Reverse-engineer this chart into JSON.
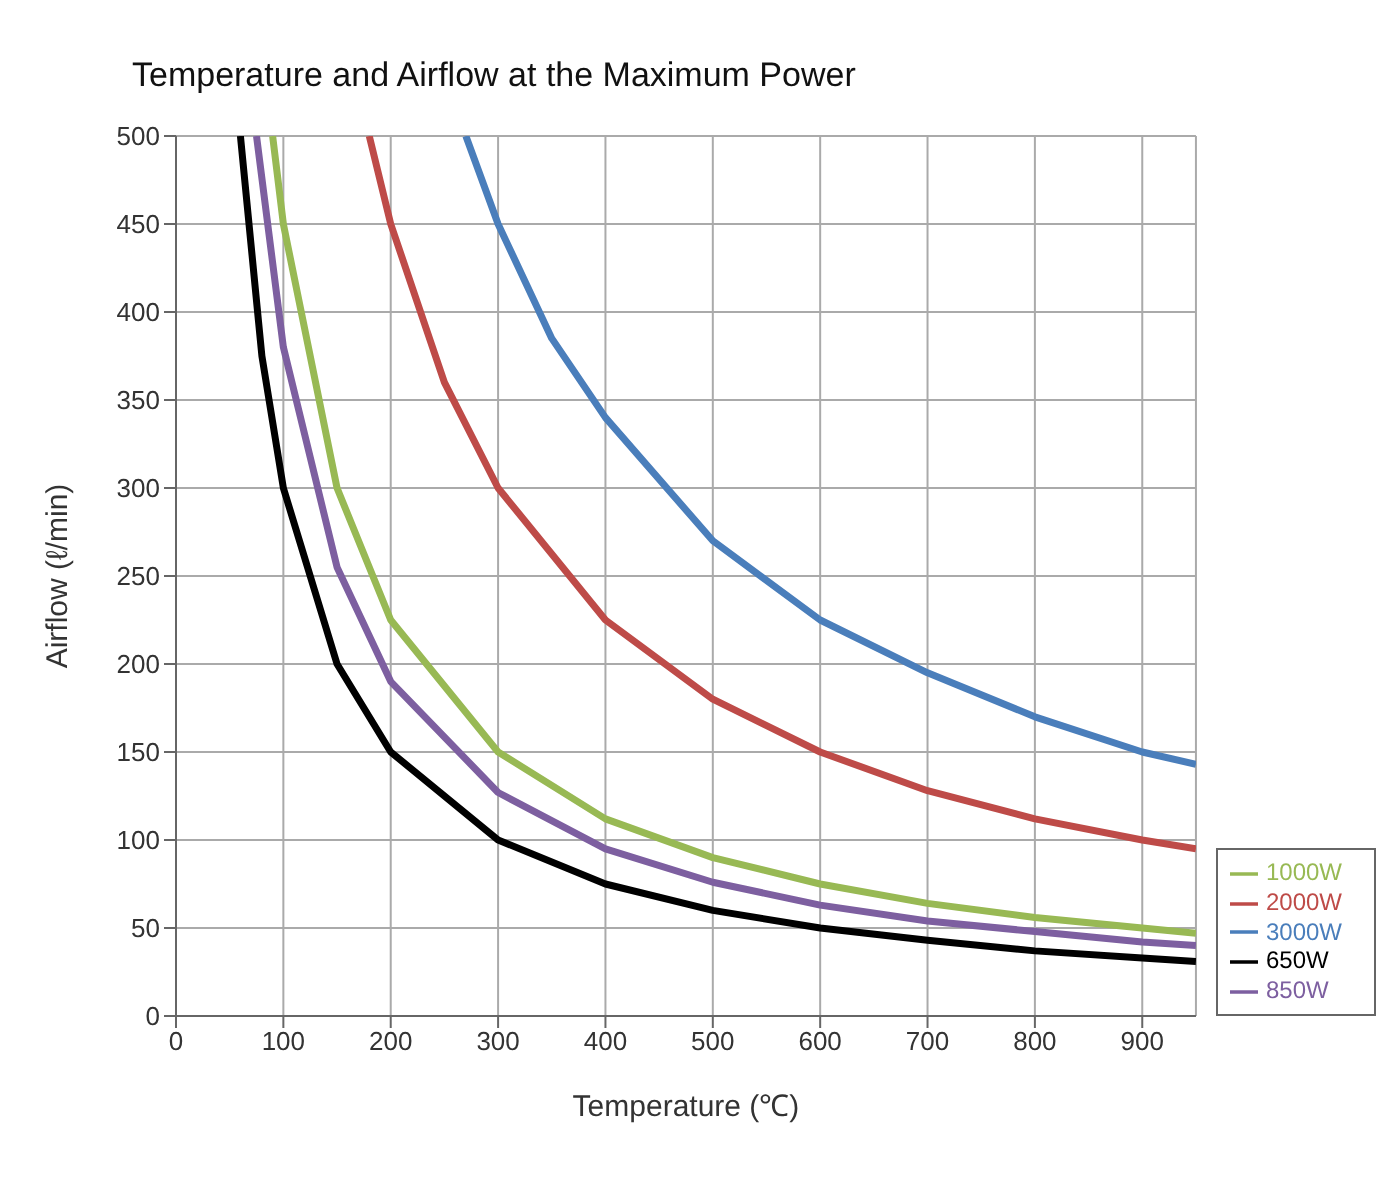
{
  "chart_data": {
    "type": "line",
    "title": "Temperature and Airflow at the Maximum Power",
    "xlabel": "Temperature (℃)",
    "ylabel": "Airflow (ℓ/min)",
    "xlim": [
      0,
      950
    ],
    "ylim": [
      0,
      500
    ],
    "xticks": [
      0,
      100,
      200,
      300,
      400,
      500,
      600,
      700,
      800,
      900
    ],
    "yticks": [
      0,
      50,
      100,
      150,
      200,
      250,
      300,
      350,
      400,
      450,
      500
    ],
    "grid": true,
    "legend": "bottom right",
    "series": [
      {
        "name": "3000W",
        "color": "#4a7ebb",
        "x": [
          270,
          300,
          350,
          400,
          500,
          600,
          700,
          800,
          900,
          950
        ],
        "values": [
          500,
          450,
          385,
          340,
          270,
          225,
          195,
          170,
          150,
          143
        ]
      },
      {
        "name": "2000W",
        "color": "#be4b48",
        "x": [
          180,
          200,
          250,
          300,
          400,
          500,
          600,
          700,
          800,
          900,
          950
        ],
        "values": [
          500,
          450,
          360,
          300,
          225,
          180,
          150,
          128,
          112,
          100,
          95
        ]
      },
      {
        "name": "1000W",
        "color": "#98b954",
        "x": [
          90,
          100,
          150,
          200,
          300,
          400,
          500,
          600,
          700,
          800,
          900,
          950
        ],
        "values": [
          500,
          450,
          300,
          225,
          150,
          112,
          90,
          75,
          64,
          56,
          50,
          47
        ]
      },
      {
        "name": "850W",
        "color": "#7d5fa0",
        "x": [
          75,
          100,
          150,
          200,
          300,
          400,
          500,
          600,
          700,
          800,
          900,
          950
        ],
        "values": [
          500,
          380,
          255,
          190,
          127,
          95,
          76,
          63,
          54,
          48,
          42,
          40
        ]
      },
      {
        "name": "650W",
        "color": "#000000",
        "x": [
          60,
          80,
          100,
          150,
          200,
          300,
          400,
          500,
          600,
          700,
          800,
          900,
          950
        ],
        "values": [
          500,
          375,
          300,
          200,
          150,
          100,
          75,
          60,
          50,
          43,
          37,
          33,
          31
        ]
      }
    ]
  }
}
